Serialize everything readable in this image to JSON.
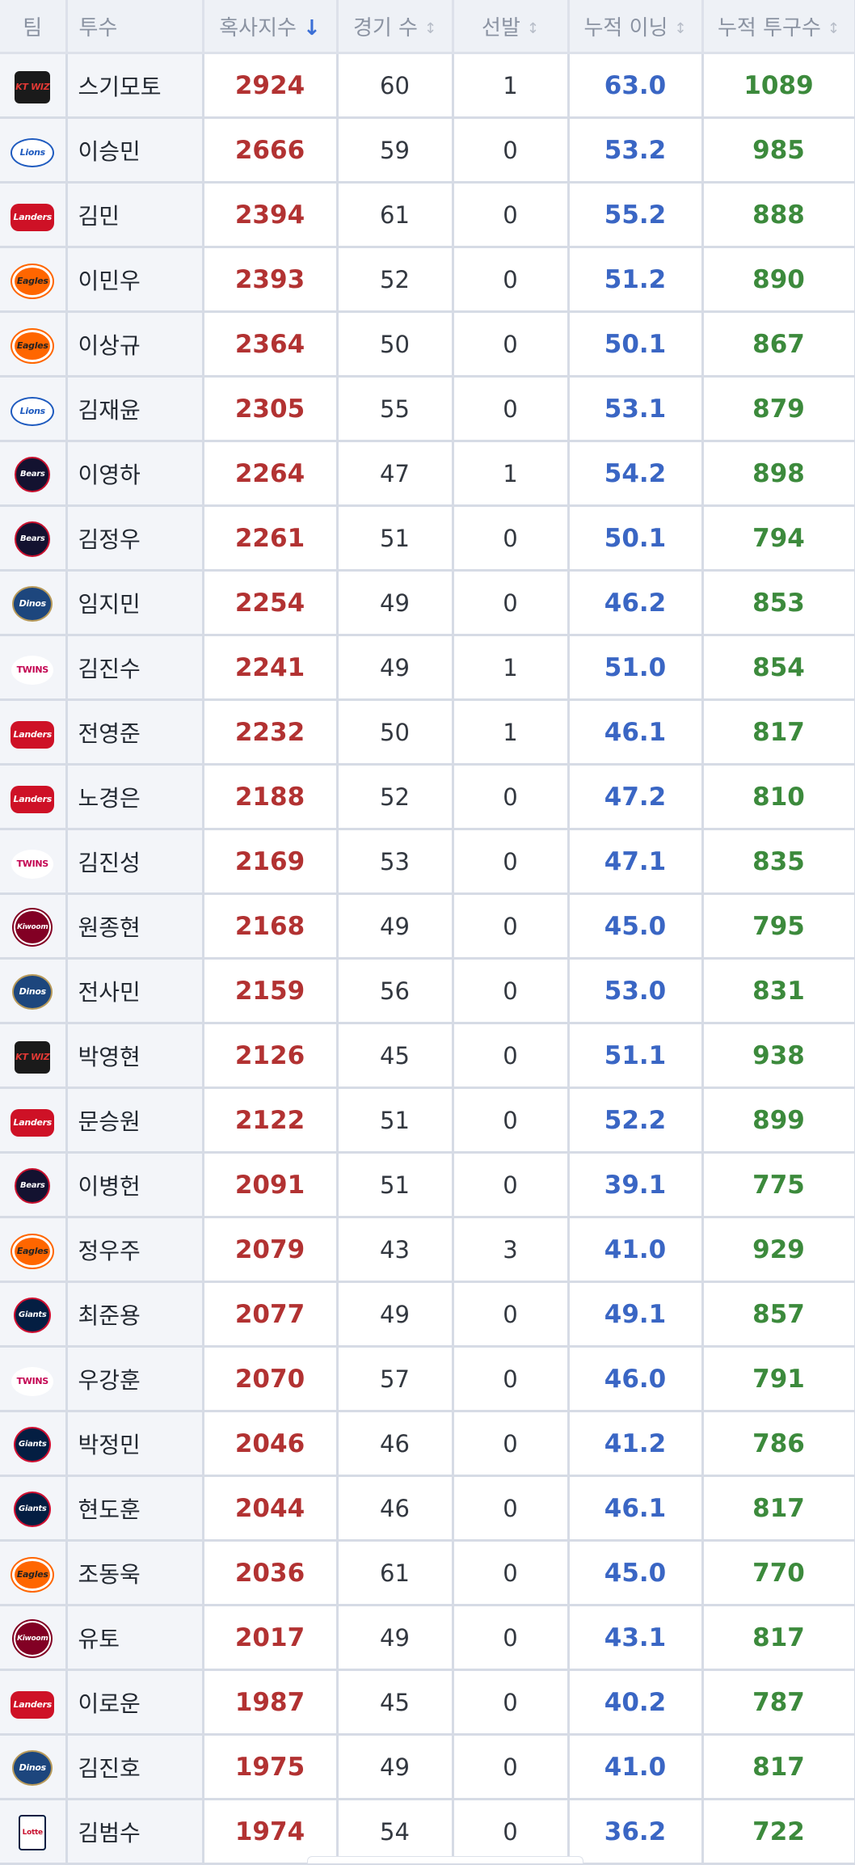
{
  "table": {
    "headers": {
      "team": "팀",
      "pitcher": "투수",
      "index": "혹사지수",
      "games": "경기 수",
      "starts": "선발",
      "innings": "누적 이닝",
      "pitches": "누적 투구수"
    },
    "sort_column": "index",
    "sort_direction": "descending",
    "rows": [
      {
        "team_logo": "Wiz",
        "name": "스기모토",
        "index": "2924",
        "games": "60",
        "starts": "1",
        "innings": "63.0",
        "pitches": "1089"
      },
      {
        "team_logo": "Lions",
        "name": "이승민",
        "index": "2666",
        "games": "59",
        "starts": "0",
        "innings": "53.2",
        "pitches": "985"
      },
      {
        "team_logo": "Landers",
        "name": "김민",
        "index": "2394",
        "games": "61",
        "starts": "0",
        "innings": "55.2",
        "pitches": "888"
      },
      {
        "team_logo": "Eagles",
        "name": "이민우",
        "index": "2393",
        "games": "52",
        "starts": "0",
        "innings": "51.2",
        "pitches": "890"
      },
      {
        "team_logo": "Eagles",
        "name": "이상규",
        "index": "2364",
        "games": "50",
        "starts": "0",
        "innings": "50.1",
        "pitches": "867"
      },
      {
        "team_logo": "Lions",
        "name": "김재윤",
        "index": "2305",
        "games": "55",
        "starts": "0",
        "innings": "53.1",
        "pitches": "879"
      },
      {
        "team_logo": "Bears",
        "name": "이영하",
        "index": "2264",
        "games": "47",
        "starts": "1",
        "innings": "54.2",
        "pitches": "898"
      },
      {
        "team_logo": "Bears",
        "name": "김정우",
        "index": "2261",
        "games": "51",
        "starts": "0",
        "innings": "50.1",
        "pitches": "794"
      },
      {
        "team_logo": "Dinos",
        "name": "임지민",
        "index": "2254",
        "games": "49",
        "starts": "0",
        "innings": "46.2",
        "pitches": "853"
      },
      {
        "team_logo": "Twins",
        "name": "김진수",
        "index": "2241",
        "games": "49",
        "starts": "1",
        "innings": "51.0",
        "pitches": "854"
      },
      {
        "team_logo": "Landers",
        "name": "전영준",
        "index": "2232",
        "games": "50",
        "starts": "1",
        "innings": "46.1",
        "pitches": "817"
      },
      {
        "team_logo": "Landers",
        "name": "노경은",
        "index": "2188",
        "games": "52",
        "starts": "0",
        "innings": "47.2",
        "pitches": "810"
      },
      {
        "team_logo": "Twins",
        "name": "김진성",
        "index": "2169",
        "games": "53",
        "starts": "0",
        "innings": "47.1",
        "pitches": "835"
      },
      {
        "team_logo": "Kiwoom",
        "name": "원종현",
        "index": "2168",
        "games": "49",
        "starts": "0",
        "innings": "45.0",
        "pitches": "795"
      },
      {
        "team_logo": "Dinos",
        "name": "전사민",
        "index": "2159",
        "games": "56",
        "starts": "0",
        "innings": "53.0",
        "pitches": "831"
      },
      {
        "team_logo": "Wiz",
        "name": "박영현",
        "index": "2126",
        "games": "45",
        "starts": "0",
        "innings": "51.1",
        "pitches": "938"
      },
      {
        "team_logo": "Landers",
        "name": "문승원",
        "index": "2122",
        "games": "51",
        "starts": "0",
        "innings": "52.2",
        "pitches": "899"
      },
      {
        "team_logo": "Bears",
        "name": "이병헌",
        "index": "2091",
        "games": "51",
        "starts": "0",
        "innings": "39.1",
        "pitches": "775"
      },
      {
        "team_logo": "Eagles",
        "name": "정우주",
        "index": "2079",
        "games": "43",
        "starts": "3",
        "innings": "41.0",
        "pitches": "929"
      },
      {
        "team_logo": "Giants",
        "name": "최준용",
        "index": "2077",
        "games": "49",
        "starts": "0",
        "innings": "49.1",
        "pitches": "857"
      },
      {
        "team_logo": "Twins",
        "name": "우강훈",
        "index": "2070",
        "games": "57",
        "starts": "0",
        "innings": "46.0",
        "pitches": "791"
      },
      {
        "team_logo": "Giants",
        "name": "박정민",
        "index": "2046",
        "games": "46",
        "starts": "0",
        "innings": "41.2",
        "pitches": "786"
      },
      {
        "team_logo": "Giants",
        "name": "현도훈",
        "index": "2044",
        "games": "46",
        "starts": "0",
        "innings": "46.1",
        "pitches": "817"
      },
      {
        "team_logo": "Eagles",
        "name": "조동욱",
        "index": "2036",
        "games": "61",
        "starts": "0",
        "innings": "45.0",
        "pitches": "770"
      },
      {
        "team_logo": "Kiwoom",
        "name": "유토",
        "index": "2017",
        "games": "49",
        "starts": "0",
        "innings": "43.1",
        "pitches": "817"
      },
      {
        "team_logo": "Landers",
        "name": "이로운",
        "index": "1987",
        "games": "45",
        "starts": "0",
        "innings": "40.2",
        "pitches": "787"
      },
      {
        "team_logo": "Dinos",
        "name": "김진호",
        "index": "1975",
        "games": "49",
        "starts": "0",
        "innings": "41.0",
        "pitches": "817"
      },
      {
        "team_logo": "Lotte",
        "name": "김범수",
        "index": "1974",
        "games": "54",
        "starts": "0",
        "innings": "36.2",
        "pitches": "722"
      }
    ]
  },
  "logo_styles": {
    "Wiz": {
      "class": "wiz",
      "text": "KT WIZ"
    },
    "Lions": {
      "class": "lions",
      "text": "Lions"
    },
    "Landers": {
      "class": "landers",
      "text": "Landers"
    },
    "Eagles": {
      "class": "eagles",
      "text": "Eagles"
    },
    "Bears": {
      "class": "bears",
      "text": "Bears"
    },
    "Dinos": {
      "class": "dinos",
      "text": "Dinos"
    },
    "Twins": {
      "class": "twins",
      "text": "TWINS"
    },
    "Kiwoom": {
      "class": "heroes",
      "text": "Kiwoom"
    },
    "Giants": {
      "class": "giants",
      "text": "Giants"
    },
    "Lotte": {
      "class": "lotte",
      "text": "Lotte"
    }
  },
  "colors": {
    "index": "#b23232",
    "innings": "#3a66c4",
    "pitches": "#3c8a3c",
    "sort_active": "#3b6fd6"
  },
  "icons": {
    "sort_active": "arrow-down-icon",
    "sort_inactive": "sort-updown-icon"
  }
}
